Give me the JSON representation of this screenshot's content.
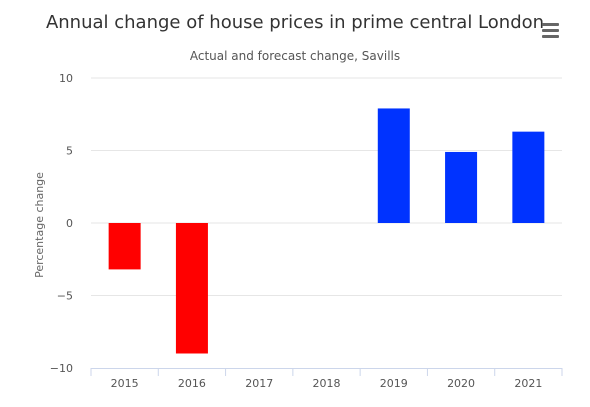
{
  "chart_data": {
    "type": "bar",
    "title": "Annual change of house prices in prime central London",
    "subtitle": "Actual and forecast change, Savills",
    "xlabel": "",
    "ylabel": "Percentage change",
    "ylim": [
      -10,
      10
    ],
    "yticks": [
      10,
      5,
      0,
      -5,
      -10
    ],
    "ytick_labels": [
      "10",
      "5",
      "0",
      "−5",
      "−10"
    ],
    "grid": true,
    "legend": "none",
    "categories": [
      "2015",
      "2016",
      "2017",
      "2018",
      "2019",
      "2020",
      "2021"
    ],
    "values": [
      -3.2,
      -9.0,
      0,
      0,
      7.9,
      4.9,
      6.3
    ],
    "colors": [
      "#ff0000",
      "#ff0000",
      "#ff0000",
      "#ff0000",
      "#0033ff",
      "#0033ff",
      "#0033ff"
    ]
  },
  "menu": {
    "icon": "hamburger-menu-icon"
  }
}
